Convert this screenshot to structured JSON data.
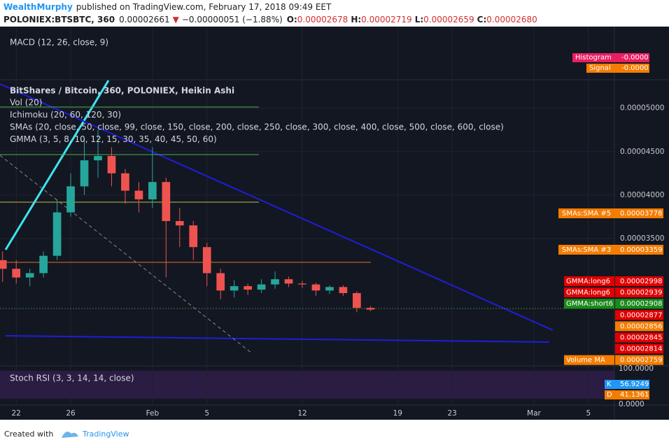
{
  "header": {
    "author": "WealthMurphy",
    "published": "published on TradingView.com, February 17, 2018 09:49 EET"
  },
  "symbol_bar": {
    "symbol": "POLONIEX:BTSBTC, 360",
    "last": "0.00002661",
    "change": "−0.00000051 (−1.88%)",
    "open_label": "O:",
    "open": "0.00002678",
    "high_label": "H:",
    "high": "0.00002719",
    "low_label": "L:",
    "low": "0.00002659",
    "close_label": "C:",
    "close": "0.00002680"
  },
  "macd": {
    "label": "MACD (12, 26, close, 9)",
    "histogram_tag": "Histogram",
    "histogram_value": "-0.0000",
    "signal_tag": "Signal",
    "signal_value": "-0.0000"
  },
  "stoch": {
    "label": "Stoch RSI (3, 3, 14, 14, close)",
    "top": "100.0000",
    "bottom": "0.0000",
    "k_tag": "K",
    "k_value": "56.9249",
    "d_tag": "D",
    "d_value": "41.1361"
  },
  "price_tags": [
    {
      "label": "SMAs:SMA #5",
      "value": "0.00003778",
      "color": "#f57c00"
    },
    {
      "label": "SMAs:SMA #3",
      "value": "0.00003359",
      "color": "#f57c00"
    }
  ],
  "price_stack": [
    {
      "label": "GMMA:long6",
      "value": "0.00002998",
      "color": "#e00000"
    },
    {
      "label": "GMMA:long6",
      "value": "0.00002939",
      "color": "#e00000"
    },
    {
      "label": "GMMA:short6",
      "value": "0.00002908",
      "color": "#1a8a1a"
    },
    {
      "label": null,
      "value": "0.00002877",
      "color": "#e00000"
    },
    {
      "label": null,
      "value": "0.00002856",
      "color": "#f57c00"
    },
    {
      "label": null,
      "value": "0.00002845",
      "color": "#e00000"
    },
    {
      "label": null,
      "value": "0.00002814",
      "color": "#e00000"
    },
    {
      "label": "Volume MA",
      "value": "0.00002759",
      "color": "#f57c00"
    }
  ],
  "footer": {
    "created": "Created with",
    "brand": "TradingView"
  },
  "chart_data": {
    "type": "candlestick",
    "title": "BitShares / Bitcoin, 360, POLONIEX, Heikin Ashi",
    "indicators": [
      "Vol (20)",
      "Ichimoku (20, 60, 120, 30)",
      "SMAs (20, close, 50, close, 99, close, 150, close, 200, close, 250, close, 300, close, 400, close, 500, close, 600, close)",
      "GMMA (3, 5, 8, 10, 12, 15, 30, 35, 40, 45, 50, 60)"
    ],
    "categories": [
      null,
      "22",
      null,
      null,
      null,
      "26",
      null,
      null,
      null,
      null,
      null,
      "Feb",
      null,
      null,
      null,
      "5",
      null,
      null,
      null,
      null,
      null,
      null,
      "12",
      null,
      null,
      null,
      null,
      null,
      null,
      "19",
      null,
      null,
      null,
      "23",
      null,
      null,
      null,
      null,
      null,
      "Mar",
      null,
      null,
      null,
      "5",
      null
    ],
    "open": [
      3.25e-05,
      3.15e-05,
      3.05e-05,
      3.1e-05,
      3.3e-05,
      3.8e-05,
      4.1e-05,
      4.4e-05,
      4.45e-05,
      4.25e-05,
      4.05e-05,
      3.95e-05,
      4.15e-05,
      3.7e-05,
      3.65e-05,
      3.4e-05,
      3.1e-05,
      2.9e-05,
      2.95e-05,
      2.91e-05,
      2.97e-05,
      3.03e-05,
      2.98e-05,
      2.97e-05,
      2.9e-05,
      2.94e-05,
      2.87e-05,
      2.7e-05,
      null,
      null,
      null,
      null,
      null,
      null,
      null,
      null,
      null,
      null,
      null,
      null,
      null,
      null,
      null,
      null,
      null
    ],
    "high": [
      3.35e-05,
      3.25e-05,
      3.15e-05,
      3.35e-05,
      3.95e-05,
      4.25e-05,
      4.65e-05,
      4.75e-05,
      4.55e-05,
      4.3e-05,
      4.15e-05,
      4.55e-05,
      4.2e-05,
      3.85e-05,
      3.7e-05,
      3.45e-05,
      3.15e-05,
      3.02e-05,
      2.98e-05,
      3.03e-05,
      3.12e-05,
      3.06e-05,
      3.01e-05,
      2.99e-05,
      2.96e-05,
      2.96e-05,
      2.89e-05,
      2.72e-05,
      null,
      null,
      null,
      null,
      null,
      null,
      null,
      null,
      null,
      null,
      null,
      null,
      null,
      null,
      null,
      null,
      null
    ],
    "low": [
      3e-05,
      2.98e-05,
      2.95e-05,
      3.05e-05,
      3.25e-05,
      3.75e-05,
      4e-05,
      4.2e-05,
      4.1e-05,
      3.9e-05,
      3.8e-05,
      3.85e-05,
      3.05e-05,
      3.4e-05,
      3.25e-05,
      2.95e-05,
      2.8e-05,
      2.82e-05,
      2.85e-05,
      2.87e-05,
      2.92e-05,
      2.94e-05,
      2.93e-05,
      2.84e-05,
      2.86e-05,
      2.84e-05,
      2.65e-05,
      2.66e-05,
      null,
      null,
      null,
      null,
      null,
      null,
      null,
      null,
      null,
      null,
      null,
      null,
      null,
      null,
      null,
      null,
      null
    ],
    "close": [
      3.15e-05,
      3.05e-05,
      3.1e-05,
      3.3e-05,
      3.8e-05,
      4.1e-05,
      4.4e-05,
      4.45e-05,
      4.25e-05,
      4.05e-05,
      3.95e-05,
      4.15e-05,
      3.7e-05,
      3.65e-05,
      3.4e-05,
      3.1e-05,
      2.9e-05,
      2.95e-05,
      2.91e-05,
      2.97e-05,
      3.03e-05,
      2.98e-05,
      2.97e-05,
      2.9e-05,
      2.94e-05,
      2.87e-05,
      2.7e-05,
      2.68e-05,
      null,
      null,
      null,
      null,
      null,
      null,
      null,
      null,
      null,
      null,
      null,
      null,
      null,
      null,
      null,
      null,
      null
    ],
    "up_color": "#26a69a",
    "down_color": "#ef5350",
    "ylim": [
      2.04e-05,
      5.32e-05
    ],
    "yticks": [
      {
        "value": 5e-05,
        "label": "0.00005000"
      },
      {
        "value": 4.5e-05,
        "label": "0.00004500"
      },
      {
        "value": 4e-05,
        "label": "0.00004000"
      },
      {
        "value": 3.5e-05,
        "label": "0.00003500"
      }
    ],
    "grid": true
  }
}
